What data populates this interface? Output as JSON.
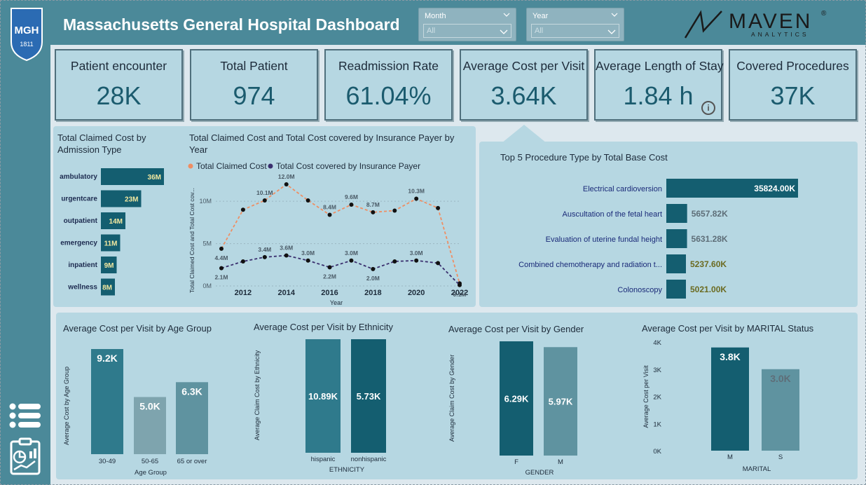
{
  "header": {
    "title": "Massachusetts General Hospital Dashboard",
    "mgh_logo": {
      "text": "MGH",
      "year": "1811"
    },
    "maven_logo": {
      "word": "MAVEN",
      "sub": "ANALYTICS",
      "mark": "®"
    },
    "slicers": [
      {
        "label": "Month",
        "value": "All"
      },
      {
        "label": "Year",
        "value": "All"
      }
    ]
  },
  "kpis": [
    {
      "label": "Patient encounter",
      "value": "28K"
    },
    {
      "label": "Total Patient",
      "value": "974"
    },
    {
      "label": "Readmission Rate",
      "value": "61.04%"
    },
    {
      "label": "Average Cost per Visit",
      "value": "3.64K"
    },
    {
      "label": "Average Length of Stay",
      "value": "1.84 h",
      "info_icon": "i"
    },
    {
      "label": "Covered Procedures",
      "value": "37K"
    }
  ],
  "sidebar": {
    "icons": [
      "menu-list-icon",
      "report-clipboard-icon"
    ]
  },
  "colors": {
    "accent": "#4b8999",
    "bar_dark": "#145e70",
    "bar_mid": "#2f7a8c",
    "orange": "#ef8e63",
    "purple": "#3a2f6e",
    "yellow_label": "#f3e9a0"
  },
  "chart_data": [
    {
      "type": "bar",
      "orientation": "horizontal",
      "title": "Total Claimed Cost by Admission Type",
      "categories": [
        "ambulatory",
        "urgentcare",
        "outpatient",
        "emergency",
        "inpatient",
        "wellness"
      ],
      "values": [
        36,
        23,
        14,
        11,
        9,
        8
      ],
      "value_labels": [
        "36M",
        "23M",
        "14M",
        "11M",
        "9M",
        "8M"
      ]
    },
    {
      "type": "line",
      "title": "Total Claimed Cost and Total Cost covered by Insurance Payer by Year",
      "xlabel": "Year",
      "ylabel": "Total Claimed Cost and Total Cost cov...",
      "x": [
        2011,
        2012,
        2013,
        2014,
        2015,
        2016,
        2017,
        2018,
        2019,
        2020,
        2021,
        2022
      ],
      "x_ticks": [
        "2012",
        "2014",
        "2016",
        "2018",
        "2020",
        "2022"
      ],
      "y_ticks": [
        "0M",
        "5M",
        "10M"
      ],
      "ylim": [
        0,
        12
      ],
      "legend_position": "top",
      "series": [
        {
          "name": "Total Claimed Cost",
          "color": "#ef8e63",
          "values": [
            4.4,
            9.0,
            10.1,
            12.0,
            10.1,
            8.4,
            9.6,
            8.7,
            8.9,
            10.3,
            9.2,
            0.3
          ],
          "labels": [
            "4.4M",
            "",
            "10.1M",
            "12.0M",
            "",
            "8.4M",
            "9.6M",
            "8.7M",
            "",
            "10.3M",
            "",
            ""
          ]
        },
        {
          "name": "Total Cost covered by Insurance Payer",
          "color": "#3a2f6e",
          "values": [
            2.1,
            2.9,
            3.4,
            3.6,
            3.0,
            2.2,
            3.0,
            2.0,
            2.9,
            3.0,
            2.7,
            0.1
          ],
          "labels": [
            "2.1M",
            "",
            "3.4M",
            "3.6M",
            "3.0M",
            "2.2M",
            "3.0M",
            "2.0M",
            "",
            "3.0M",
            "",
            "0.1M"
          ]
        }
      ]
    },
    {
      "type": "bar",
      "orientation": "horizontal",
      "title": "Top 5 Procedure Type by Total Base Cost",
      "categories": [
        "Electrical cardioversion",
        "Auscultation of the fetal heart",
        "Evaluation of uterine fundal height",
        "Combined chemotherapy and radiation t...",
        "Colonoscopy"
      ],
      "values": [
        35824.0,
        5657.82,
        5631.28,
        5237.6,
        5021.0
      ],
      "value_labels": [
        "35824.00K",
        "5657.82K",
        "5631.28K",
        "5237.60K",
        "5021.00K"
      ],
      "label_colors": [
        "#ffffff",
        "#5e6e78",
        "#5e6e78",
        "#6b6a20",
        "#6b6a20"
      ]
    },
    {
      "type": "bar",
      "title": "Average Cost per Visit by Age Group",
      "xlabel": "Age Group",
      "ylabel": "Average Cost by Age Group",
      "categories": [
        "30-49",
        "50-65",
        "65 or over"
      ],
      "values": [
        9.2,
        5.0,
        6.3
      ],
      "value_labels": [
        "9.2K",
        "5.0K",
        "6.3K"
      ],
      "colors": [
        "#2f7a8c",
        "#7ea4ae",
        "#5f93a0"
      ],
      "ylim": [
        0,
        10
      ]
    },
    {
      "type": "bar",
      "title": "Average Cost per Visit by Ethnicity",
      "xlabel": "ETHNICITY",
      "ylabel": "Average Claim Cost by Ethnicity",
      "categories": [
        "hispanic",
        "nonhispanic"
      ],
      "values": [
        10.89,
        5.73
      ],
      "value_labels": [
        "10.89K",
        "5.73K"
      ],
      "colors": [
        "#2f7a8c",
        "#145e70"
      ],
      "note": "bars drawn at equal height"
    },
    {
      "type": "bar",
      "title": "Average Cost per Visit by Gender",
      "xlabel": "GENDER",
      "ylabel": "Average Claim Cost by Gender",
      "categories": [
        "F",
        "M"
      ],
      "values": [
        6.29,
        5.97
      ],
      "value_labels": [
        "6.29K",
        "5.97K"
      ],
      "colors": [
        "#145e70",
        "#5f93a0"
      ]
    },
    {
      "type": "bar",
      "title": "Average Cost per Visit by MARITAL Status",
      "xlabel": "MARITAL",
      "ylabel": "Average Cost per Visit",
      "categories": [
        "M",
        "S"
      ],
      "values": [
        3.8,
        3.0
      ],
      "value_labels": [
        "3.8K",
        "3.0K"
      ],
      "y_ticks": [
        "0K",
        "1K",
        "2K",
        "3K",
        "4K"
      ],
      "ylim": [
        0,
        4
      ],
      "colors": [
        "#145e70",
        "#5f93a0"
      ]
    }
  ]
}
